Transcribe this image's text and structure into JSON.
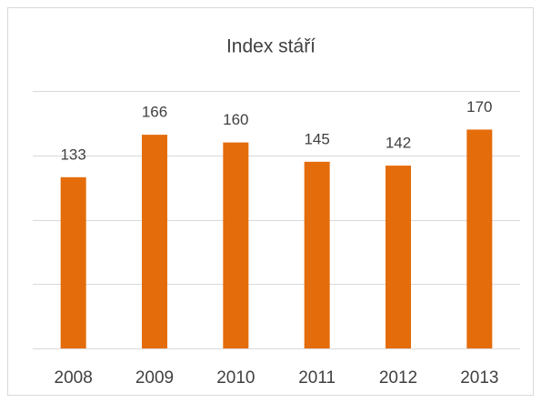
{
  "chart_data": {
    "type": "bar",
    "title": "Index stáří",
    "categories": [
      "2008",
      "2009",
      "2010",
      "2011",
      "2012",
      "2013"
    ],
    "values": [
      133,
      166,
      160,
      145,
      142,
      170
    ],
    "color": "#e46c0a",
    "ylim": [
      0,
      200
    ],
    "yticks": [
      0,
      50,
      100,
      150,
      200
    ],
    "grid": true
  }
}
